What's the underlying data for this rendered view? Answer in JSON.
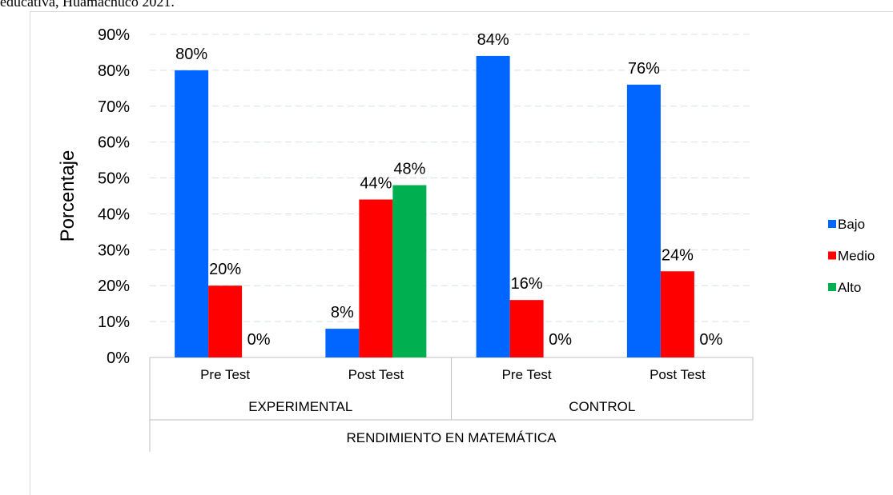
{
  "caption": "educativa, Huamachuco 2021.",
  "chart_data": {
    "type": "bar",
    "y_label": "Porcentaje",
    "categories": [
      "Pre Test",
      "Post Test",
      "Pre Test",
      "Post Test"
    ],
    "groups": [
      {
        "label": "EXPERIMENTAL",
        "span": 2
      },
      {
        "label": "CONTROL",
        "span": 2
      }
    ],
    "supergroup": "RENDIMIENTO EN MATEMÁTICA",
    "series": [
      {
        "name": "Bajo",
        "color": "#0066ff",
        "values": [
          80,
          8,
          84,
          76
        ],
        "value_labels": [
          "80%",
          "8%",
          "84%",
          "76%"
        ]
      },
      {
        "name": "Medio",
        "color": "#ff0000",
        "values": [
          20,
          44,
          16,
          24
        ],
        "value_labels": [
          "20%",
          "44%",
          "16%",
          "24%"
        ]
      },
      {
        "name": "Alto",
        "color": "#00b050",
        "values": [
          0,
          48,
          0,
          0
        ],
        "value_labels": [
          "0%",
          "48%",
          "0%",
          "0%"
        ]
      }
    ],
    "ylim": [
      0,
      90
    ],
    "yticks": [
      {
        "value": 0,
        "label": "0%"
      },
      {
        "value": 10,
        "label": "10%"
      },
      {
        "value": 20,
        "label": "20%"
      },
      {
        "value": 30,
        "label": "30%"
      },
      {
        "value": 40,
        "label": "40%"
      },
      {
        "value": 50,
        "label": "50%"
      },
      {
        "value": 60,
        "label": "60%"
      },
      {
        "value": 70,
        "label": "70%"
      },
      {
        "value": 80,
        "label": "80%"
      },
      {
        "value": 90,
        "label": "90%"
      }
    ],
    "grid": true,
    "legend": "right"
  }
}
